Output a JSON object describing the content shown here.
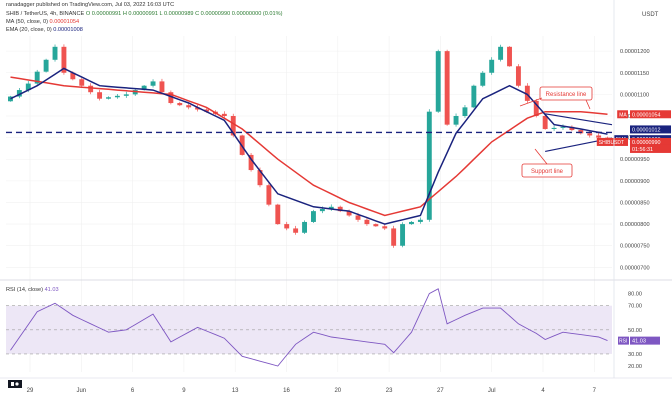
{
  "header": {
    "publisher": "ranadagger published on TradingView.com, Jul 03, 2022 16:03 UTC",
    "symbol_line": "SHIB / TetherUS, 4h, BINANCE",
    "ohlc": "O 0.00000991  H 0.00000991  L 0.00000989  C 0.00000990  0.00000000 (0.01%)",
    "ma_line": "MA (50, close, 0)",
    "ma_value": "0.00001054",
    "ema_line": "EMA (20, close, 0)",
    "ema_value": "0.00001008",
    "rsi_line": "RSI (14, close)",
    "rsi_value": "41.03"
  },
  "price_axis": {
    "unit": "USDT",
    "ticks": [
      "0.00001200",
      "0.00001150",
      "0.00001100",
      "0.00001050",
      "0.00001000",
      "0.00000950",
      "0.00000900",
      "0.00000850",
      "0.00000800",
      "0.00000750",
      "0.00000700"
    ],
    "tags": [
      {
        "name": "MA",
        "label": "MA",
        "value": "0.00001054",
        "color": "#e53935"
      },
      {
        "name": "resistance",
        "label": "",
        "value": "0.00001012",
        "color": "#1a237e"
      },
      {
        "name": "EMA",
        "label": "EMA",
        "value": "0.00001008",
        "color": "#1a237e"
      },
      {
        "name": "SHIBUSDT",
        "label": "SHIBUSDT",
        "value": "0.00000990",
        "color": "#e53935"
      },
      {
        "name": "countdown",
        "label": "",
        "value": "01:56:31",
        "color": "#e53935"
      }
    ]
  },
  "rsi_axis": {
    "ticks": [
      "80.00",
      "70.00",
      "50.00",
      "30.00",
      "20.00"
    ],
    "tag_label": "RSI",
    "tag_value": "41.03"
  },
  "time_axis": {
    "labels": [
      "29",
      "Jun",
      "6",
      "9",
      "13",
      "16",
      "20",
      "23",
      "27",
      "Jul",
      "4",
      "7"
    ]
  },
  "annotations": {
    "resistance": "Resistance line",
    "support": "Support line"
  },
  "colors": {
    "up": "#26a69a",
    "down": "#ef5350",
    "ma": "#e53935",
    "ema": "#1a237e",
    "rsi": "#7e57c2",
    "rsi_band": "#ede7f6",
    "hline": "#1a237e"
  },
  "chart_data": {
    "type": "candlestick",
    "title": "SHIB / TetherUS, 4h, BINANCE",
    "price_range": [
      6.8e-06,
      1.235e-05
    ],
    "horizontal_level": 1.012e-05,
    "price_anchors": [
      [
        0,
        1.095e-05
      ],
      [
        2,
        1.125e-05
      ],
      [
        4,
        1.18e-05
      ],
      [
        5,
        1.21e-05
      ],
      [
        6,
        1.15e-05
      ],
      [
        8,
        1.12e-05
      ],
      [
        10,
        1.09e-05
      ],
      [
        13,
        1.1e-05
      ],
      [
        16,
        1.13e-05
      ],
      [
        18,
        1.08e-05
      ],
      [
        20,
        1.07e-05
      ],
      [
        22,
        1.06e-05
      ],
      [
        24,
        1.05e-05
      ],
      [
        26,
        9.6e-06
      ],
      [
        28,
        8.9e-06
      ],
      [
        30,
        8e-06
      ],
      [
        32,
        7.8e-06
      ],
      [
        34,
        8.3e-06
      ],
      [
        36,
        8.4e-06
      ],
      [
        38,
        8.2e-06
      ],
      [
        40,
        8e-06
      ],
      [
        42,
        7.9e-06
      ],
      [
        43,
        7.5e-06
      ],
      [
        44,
        8e-06
      ],
      [
        46,
        8.1e-06
      ],
      [
        47,
        1.06e-05
      ],
      [
        48,
        1.2e-05
      ],
      [
        49,
        1.03e-05
      ],
      [
        51,
        1.07e-05
      ],
      [
        52,
        1.12e-05
      ],
      [
        54,
        1.18e-05
      ],
      [
        55,
        1.21e-05
      ],
      [
        57,
        1.12e-05
      ],
      [
        59,
        1.05e-05
      ],
      [
        60,
        1.02e-05
      ],
      [
        62,
        1.025e-05
      ],
      [
        64,
        1.01e-05
      ],
      [
        66,
        1e-05
      ],
      [
        67,
        9.9e-06
      ]
    ],
    "ma_anchors": [
      [
        0,
        1.14e-05
      ],
      [
        6,
        1.12e-05
      ],
      [
        12,
        1.11e-05
      ],
      [
        18,
        1.1e-05
      ],
      [
        22,
        1.07e-05
      ],
      [
        26,
        1.02e-05
      ],
      [
        30,
        9.5e-06
      ],
      [
        34,
        8.9e-06
      ],
      [
        38,
        8.5e-06
      ],
      [
        42,
        8.2e-06
      ],
      [
        46,
        8.4e-06
      ],
      [
        50,
        9.1e-06
      ],
      [
        54,
        9.9e-06
      ],
      [
        58,
        1.045e-05
      ],
      [
        60,
        1.06e-05
      ],
      [
        64,
        1.06e-05
      ],
      [
        67,
        1.054e-05
      ]
    ],
    "ema_anchors": [
      [
        0,
        1.09e-05
      ],
      [
        3,
        1.12e-05
      ],
      [
        6,
        1.16e-05
      ],
      [
        10,
        1.12e-05
      ],
      [
        16,
        1.11e-05
      ],
      [
        20,
        1.08e-05
      ],
      [
        24,
        1.04e-05
      ],
      [
        27,
        9.5e-06
      ],
      [
        30,
        8.7e-06
      ],
      [
        34,
        8.4e-06
      ],
      [
        38,
        8.3e-06
      ],
      [
        42,
        8e-06
      ],
      [
        46,
        8.2e-06
      ],
      [
        48,
        9.2e-06
      ],
      [
        50,
        1.01e-05
      ],
      [
        53,
        1.09e-05
      ],
      [
        56,
        1.12e-05
      ],
      [
        58,
        1.1e-05
      ],
      [
        61,
        1.03e-05
      ],
      [
        64,
        1.02e-05
      ],
      [
        67,
        1.008e-05
      ]
    ],
    "rsi_range": [
      15,
      88
    ],
    "rsi_anchors": [
      [
        0,
        33
      ],
      [
        3,
        65
      ],
      [
        5,
        72
      ],
      [
        7,
        62
      ],
      [
        9,
        55
      ],
      [
        11,
        48
      ],
      [
        13,
        50
      ],
      [
        16,
        63
      ],
      [
        18,
        40
      ],
      [
        21,
        52
      ],
      [
        24,
        43
      ],
      [
        26,
        28
      ],
      [
        28,
        24
      ],
      [
        30,
        20
      ],
      [
        32,
        38
      ],
      [
        34,
        48
      ],
      [
        36,
        44
      ],
      [
        38,
        42
      ],
      [
        40,
        40
      ],
      [
        42,
        38
      ],
      [
        43,
        31
      ],
      [
        45,
        48
      ],
      [
        47,
        80
      ],
      [
        48,
        84
      ],
      [
        49,
        55
      ],
      [
        51,
        62
      ],
      [
        53,
        68
      ],
      [
        55,
        68
      ],
      [
        57,
        55
      ],
      [
        59,
        47
      ],
      [
        60,
        42
      ],
      [
        62,
        48
      ],
      [
        64,
        46
      ],
      [
        66,
        44
      ],
      [
        67,
        41.03
      ]
    ],
    "rsi_levels": [
      70,
      50,
      30
    ],
    "trendlines": [
      {
        "name": "Resistance line",
        "from": [
          60,
          1.055e-05
        ],
        "to": [
          67.5,
          1.03e-05
        ]
      },
      {
        "name": "Support line",
        "from": [
          60,
          9.68e-06
        ],
        "to": [
          67.5,
          9.99e-06
        ]
      }
    ]
  }
}
